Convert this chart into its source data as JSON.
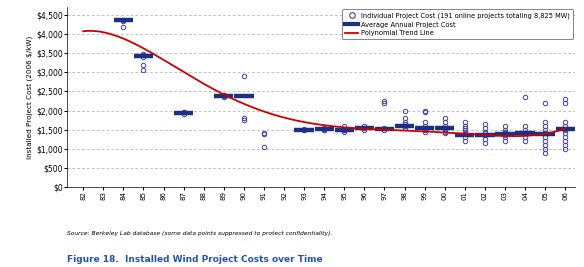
{
  "title": "Figure 18.  Installed Wind Project Costs over Time",
  "source_text": "Source: Berkeley Lab database (some data points suppressed to protect confidentiality).",
  "ylabel": "Installed Project Cost (2006 $/kW)",
  "ylim": [
    0,
    4700
  ],
  "yticks": [
    0,
    500,
    1000,
    1500,
    2000,
    2500,
    3000,
    3500,
    4000,
    4500
  ],
  "ytick_labels": [
    "$0",
    "$500",
    "$1,000",
    "$1,500",
    "$2,000",
    "$2,500",
    "$3,000",
    "$3,500",
    "$4,000",
    "$4,500"
  ],
  "years": [
    1982,
    1983,
    1984,
    1985,
    1986,
    1987,
    1988,
    1989,
    1990,
    1991,
    1992,
    1993,
    1994,
    1995,
    1996,
    1997,
    1998,
    1999,
    2000,
    2001,
    2002,
    2003,
    2004,
    2005,
    2006
  ],
  "scatter_data": {
    "1984": [
      4350,
      4380,
      4180
    ],
    "1985": [
      3050,
      3200,
      3400,
      3450,
      3480
    ],
    "1987": [
      1900,
      1950,
      1960
    ],
    "1989": [
      2350,
      2380,
      2400,
      2420
    ],
    "1990": [
      1750,
      1800,
      2900
    ],
    "1991": [
      1050,
      1380,
      1400
    ],
    "1993": [
      1480,
      1500,
      1520
    ],
    "1994": [
      1480,
      1500,
      1520,
      1550
    ],
    "1995": [
      1430,
      1480,
      1500,
      1600
    ],
    "1996": [
      1500,
      1550,
      1600
    ],
    "1997": [
      1480,
      1530,
      2200,
      2250
    ],
    "1998": [
      1550,
      1600,
      1650,
      1700,
      1800,
      2000
    ],
    "1999": [
      1450,
      1500,
      1600,
      1700,
      1950,
      2000
    ],
    "2000": [
      1400,
      1450,
      1500,
      1600,
      1700,
      1800
    ],
    "2001": [
      1200,
      1300,
      1400,
      1500,
      1550,
      1600,
      1700
    ],
    "2002": [
      1150,
      1250,
      1350,
      1400,
      1450,
      1550,
      1650
    ],
    "2003": [
      1200,
      1300,
      1350,
      1400,
      1450,
      1500,
      1600
    ],
    "2004": [
      1200,
      1300,
      1400,
      1500,
      1600,
      2350
    ],
    "2005": [
      900,
      1000,
      1100,
      1200,
      1300,
      1400,
      1500,
      1600,
      1700,
      2200
    ],
    "2006": [
      1000,
      1100,
      1200,
      1300,
      1400,
      1500,
      1600,
      1700,
      2200,
      2300
    ]
  },
  "avg_data": {
    "1984": 4370,
    "1985": 3440,
    "1987": 1930,
    "1989": 2390,
    "1990": 2380,
    "1993": 1500,
    "1994": 1510,
    "1995": 1490,
    "1996": 1540,
    "1997": 1510,
    "1998": 1600,
    "1999": 1540,
    "2000": 1530,
    "2001": 1350,
    "2002": 1350,
    "2003": 1380,
    "2004": 1410,
    "2005": 1380,
    "2006": 1510
  },
  "scatter_color": "#4040aa",
  "avg_color": "#1a3080",
  "trend_color": "#cc0000",
  "bg_color": "#ffffff",
  "grid_color": "#aaaaaa",
  "legend_label_scatter": "Individual Project Cost (191 online projects totaling 8,825 MW)",
  "legend_label_avg": "Average Annual Project Cost",
  "legend_label_trend": "Polynomial Trend Line"
}
